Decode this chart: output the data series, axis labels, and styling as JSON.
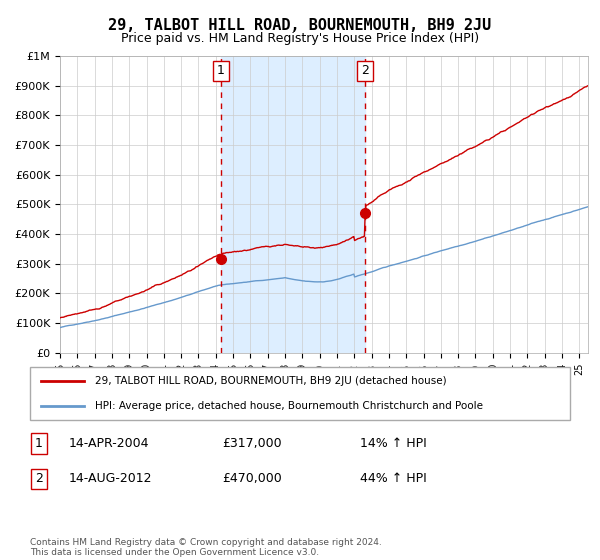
{
  "title": "29, TALBOT HILL ROAD, BOURNEMOUTH, BH9 2JU",
  "subtitle": "Price paid vs. HM Land Registry's House Price Index (HPI)",
  "legend_line1": "29, TALBOT HILL ROAD, BOURNEMOUTH, BH9 2JU (detached house)",
  "legend_line2": "HPI: Average price, detached house, Bournemouth Christchurch and Poole",
  "annotation1_label": "1",
  "annotation1_date": "14-APR-2004",
  "annotation1_price": "£317,000",
  "annotation1_hpi": "14% ↑ HPI",
  "annotation2_label": "2",
  "annotation2_date": "14-AUG-2012",
  "annotation2_price": "£470,000",
  "annotation2_hpi": "44% ↑ HPI",
  "footer": "Contains HM Land Registry data © Crown copyright and database right 2024.\nThis data is licensed under the Open Government Licence v3.0.",
  "sale1_year": 2004.29,
  "sale1_value": 317000,
  "sale2_year": 2012.62,
  "sale2_value": 470000,
  "red_color": "#cc0000",
  "blue_color": "#6699cc",
  "shade_color": "#ddeeff",
  "background_color": "#ffffff",
  "grid_color": "#cccccc",
  "ylim": [
    0,
    1000000
  ],
  "xlim_start": 1995,
  "xlim_end": 2025.5
}
